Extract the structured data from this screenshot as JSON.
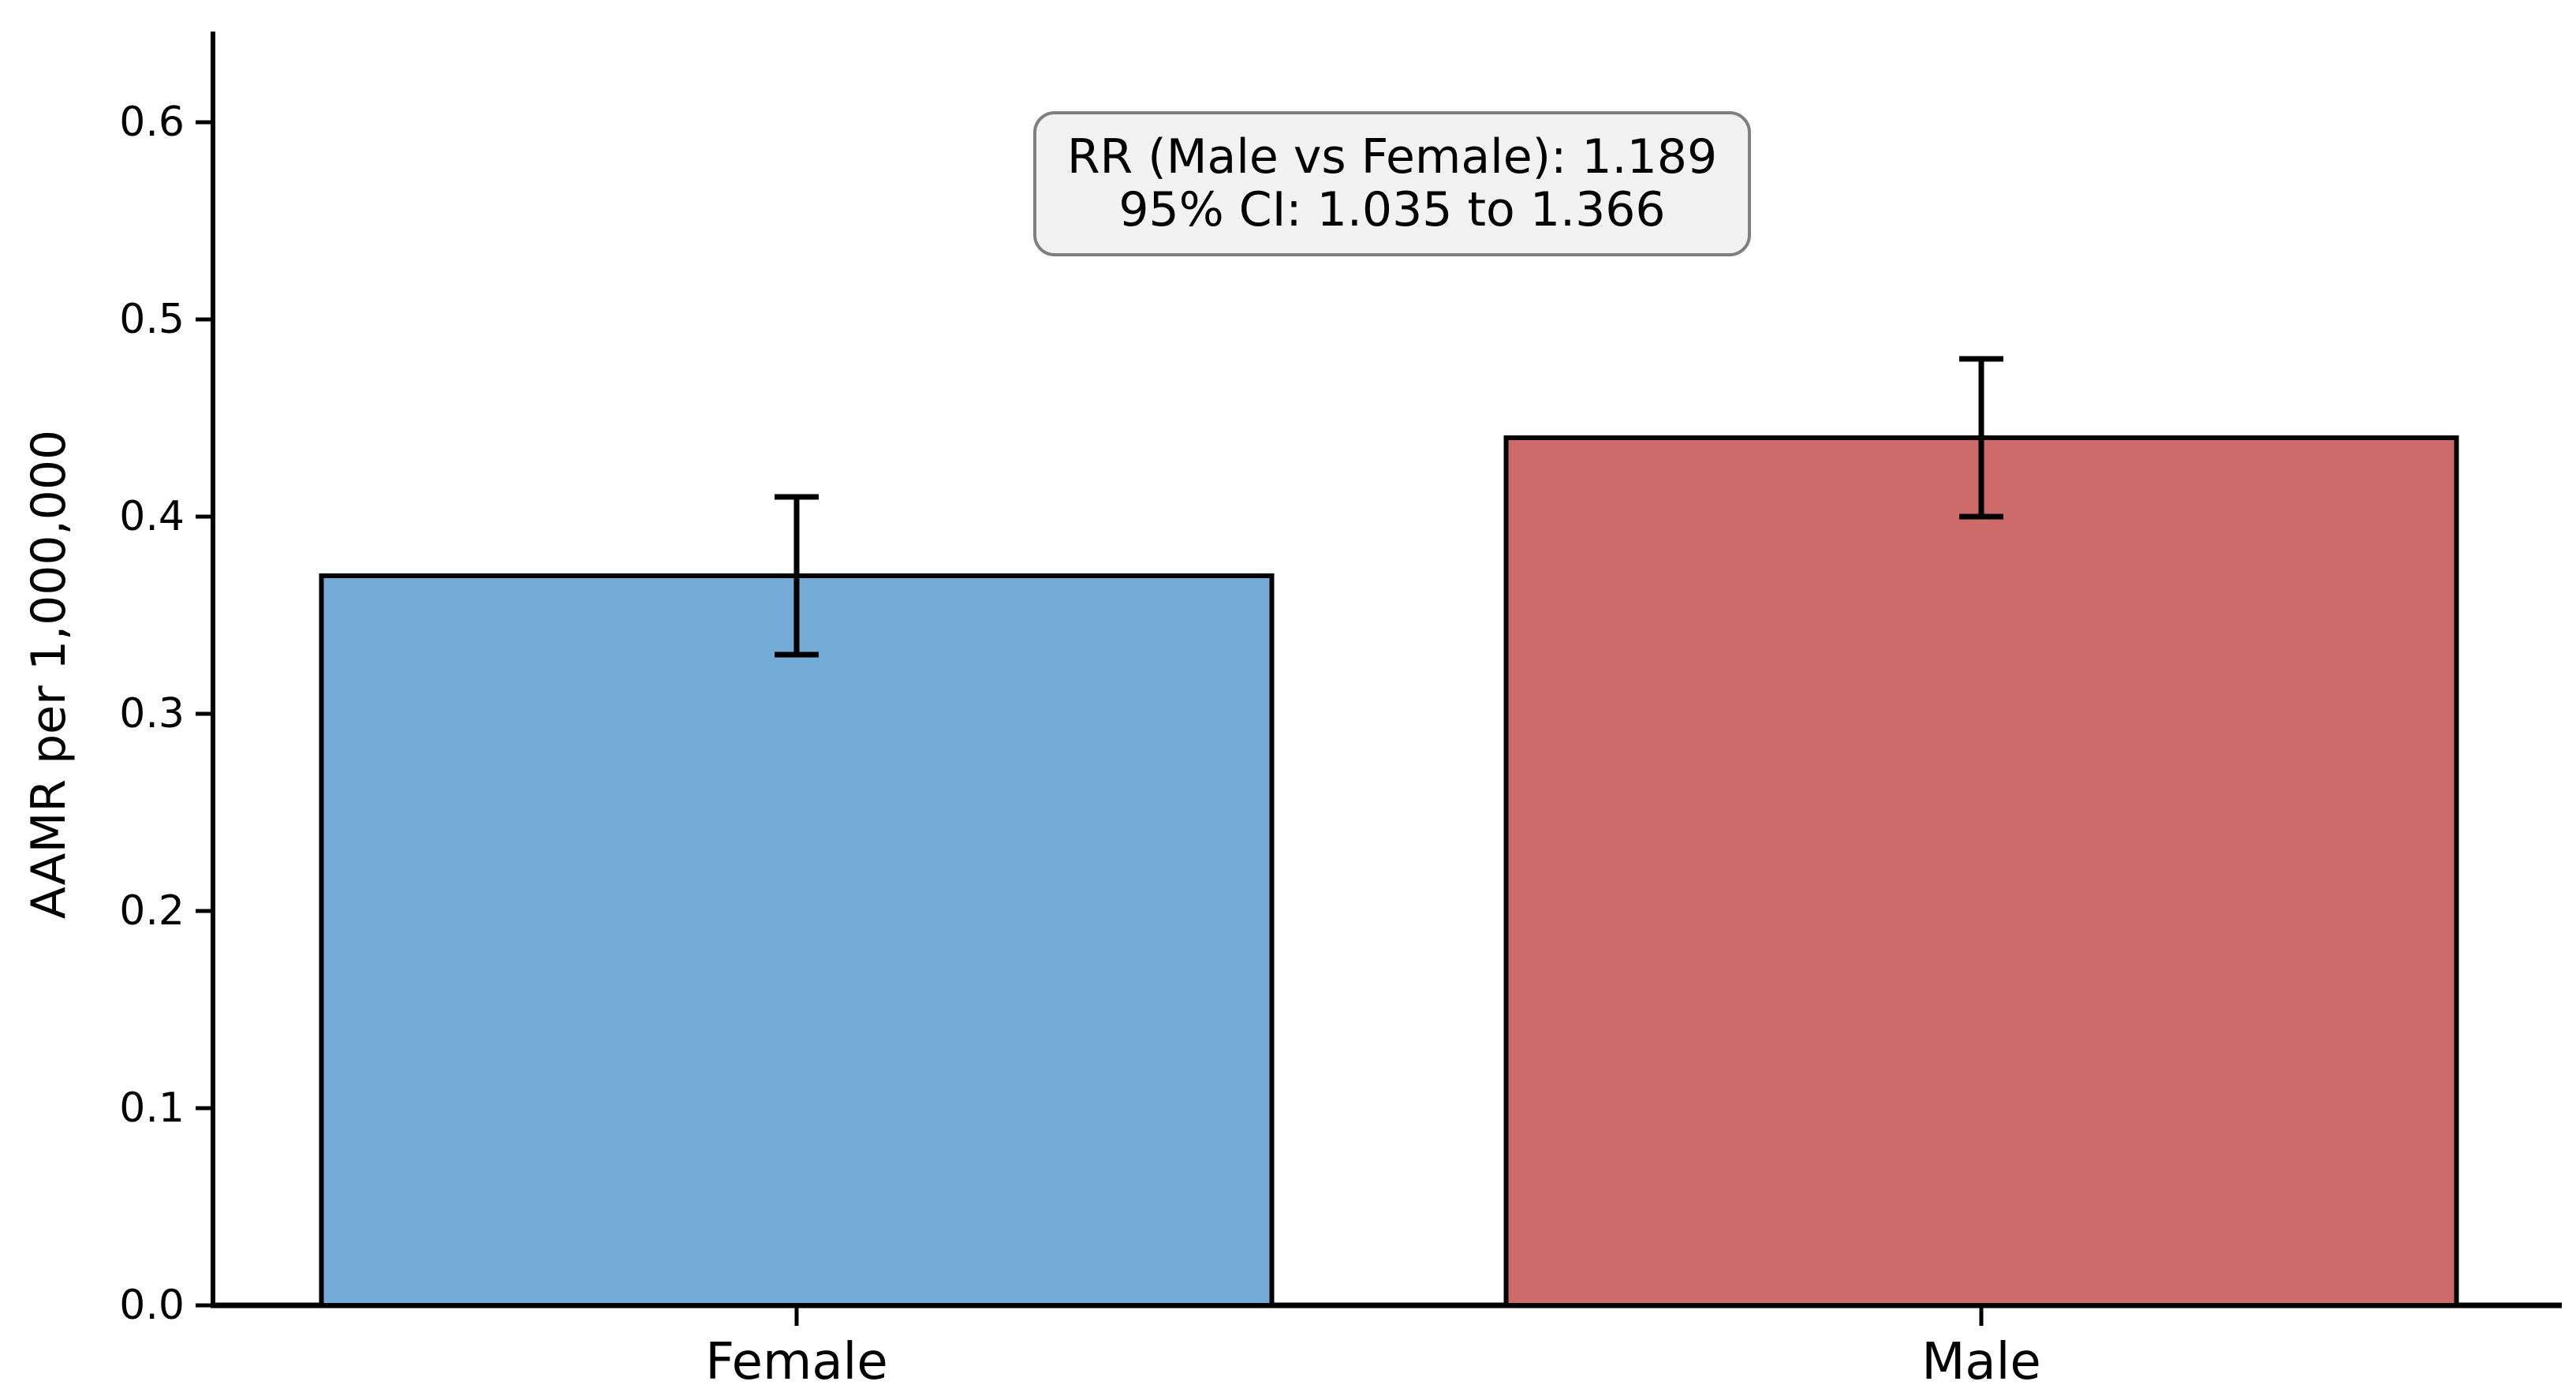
{
  "chart_data": {
    "type": "bar",
    "categories": [
      "Female",
      "Male"
    ],
    "values": [
      0.37,
      0.44
    ],
    "error_low": [
      0.33,
      0.4
    ],
    "error_high": [
      0.41,
      0.48
    ],
    "title": "",
    "xlabel": "",
    "ylabel": "AAMR per 1,000,000",
    "ylim": [
      0.0,
      0.646
    ],
    "ytick_labels": [
      "0.0",
      "0.1",
      "0.2",
      "0.3",
      "0.4",
      "0.5",
      "0.6"
    ],
    "grid": false,
    "legend_position": "none",
    "bar_colors": [
      "#73aad6",
      "#cd6a6a"
    ],
    "bar_edge_color": "#000000",
    "error_bar_color": "#000000",
    "annotation": {
      "line1": "RR (Male vs Female): 1.189",
      "line2": "95% CI: 1.035 to 1.366",
      "background": "#f2f2f2",
      "border_color": "#7f7f7f"
    }
  }
}
